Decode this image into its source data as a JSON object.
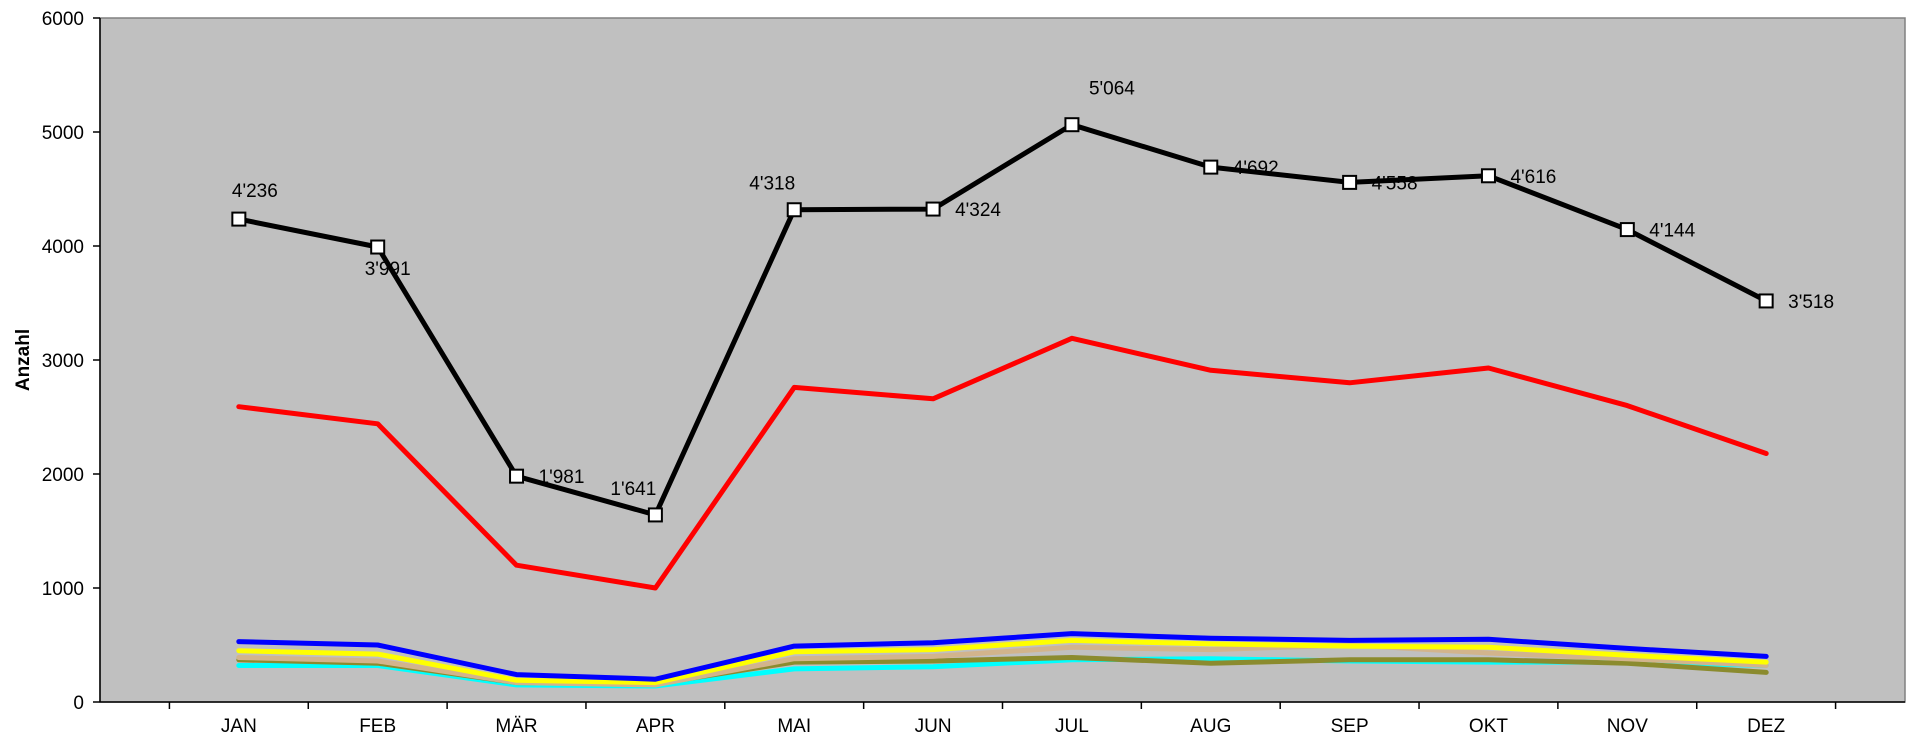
{
  "chart_data": {
    "type": "line",
    "title": "",
    "xlabel": "",
    "ylabel": "Anzahl",
    "ylim": [
      0,
      6000
    ],
    "yticks": [
      0,
      1000,
      2000,
      3000,
      4000,
      5000,
      6000
    ],
    "plot_background": "#c0c0c0",
    "grid": false,
    "legend": "none",
    "categories": [
      "JAN",
      "FEB",
      "MÄR",
      "APR",
      "MAI",
      "JUN",
      "JUL",
      "AUG",
      "SEP",
      "OKT",
      "NOV",
      "DEZ"
    ],
    "series": [
      {
        "color": "#000000",
        "markers": true,
        "values": [
          4236,
          3991,
          1981,
          1641,
          4318,
          4324,
          5064,
          4692,
          4558,
          4616,
          4144,
          3518
        ],
        "labels": [
          "4'236",
          "3'991",
          "1'981",
          "1'641",
          "4'318",
          "4'324",
          "5'064",
          "4'692",
          "4'558",
          "4'616",
          "4'144",
          "3'518"
        ]
      },
      {
        "color": "#ff0000",
        "values": [
          2590,
          2440,
          1200,
          1000,
          2760,
          2660,
          3190,
          2910,
          2800,
          2930,
          2600,
          2180
        ]
      },
      {
        "color": "#0000ff",
        "values": [
          530,
          500,
          240,
          200,
          490,
          520,
          600,
          560,
          540,
          550,
          470,
          400
        ]
      },
      {
        "color": "#ffff00",
        "values": [
          450,
          420,
          190,
          170,
          440,
          460,
          540,
          510,
          490,
          480,
          410,
          350
        ]
      },
      {
        "color": "#d2b48c",
        "values": [
          390,
          360,
          170,
          150,
          380,
          400,
          480,
          460,
          500,
          430,
          380,
          320
        ]
      },
      {
        "color": "#8b8b2e",
        "values": [
          370,
          340,
          170,
          160,
          350,
          360,
          390,
          340,
          370,
          370,
          340,
          260
        ]
      },
      {
        "color": "#00ffff",
        "values": [
          320,
          320,
          150,
          140,
          290,
          310,
          370,
          380,
          360,
          350,
          350,
          320
        ]
      }
    ]
  }
}
